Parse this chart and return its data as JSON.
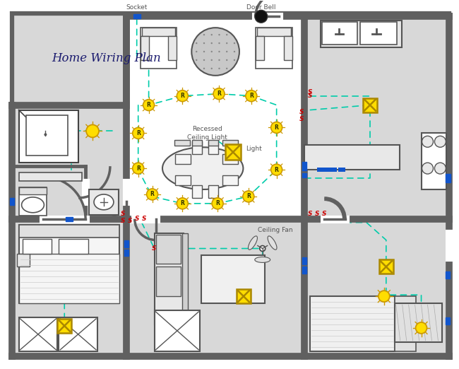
{
  "title": "Home Wiring Plan",
  "title_color": "#1a1a6e",
  "title_fontsize": 12,
  "bg_color": "#ffffff",
  "wall_color": "#606060",
  "wall_lw": 4.5,
  "inner_wall_lw": 2.5,
  "wire_color": "#00ccaa",
  "wire_lw": 1.2,
  "switch_color": "#cc0000",
  "outlet_color": "#1155cc",
  "light_yellow": "#ffdd00",
  "light_stroke": "#cc9900",
  "label_color": "#555555",
  "socket_label": "Socket",
  "doorbell_label": "Door Bell",
  "recessed_label": "Recessed\nCeiling Light",
  "light_label": "Light",
  "ceilingfan_label": "Ceiling Fan",
  "wall_fill": "#d8d8d8",
  "room_fill": "#ffffff"
}
